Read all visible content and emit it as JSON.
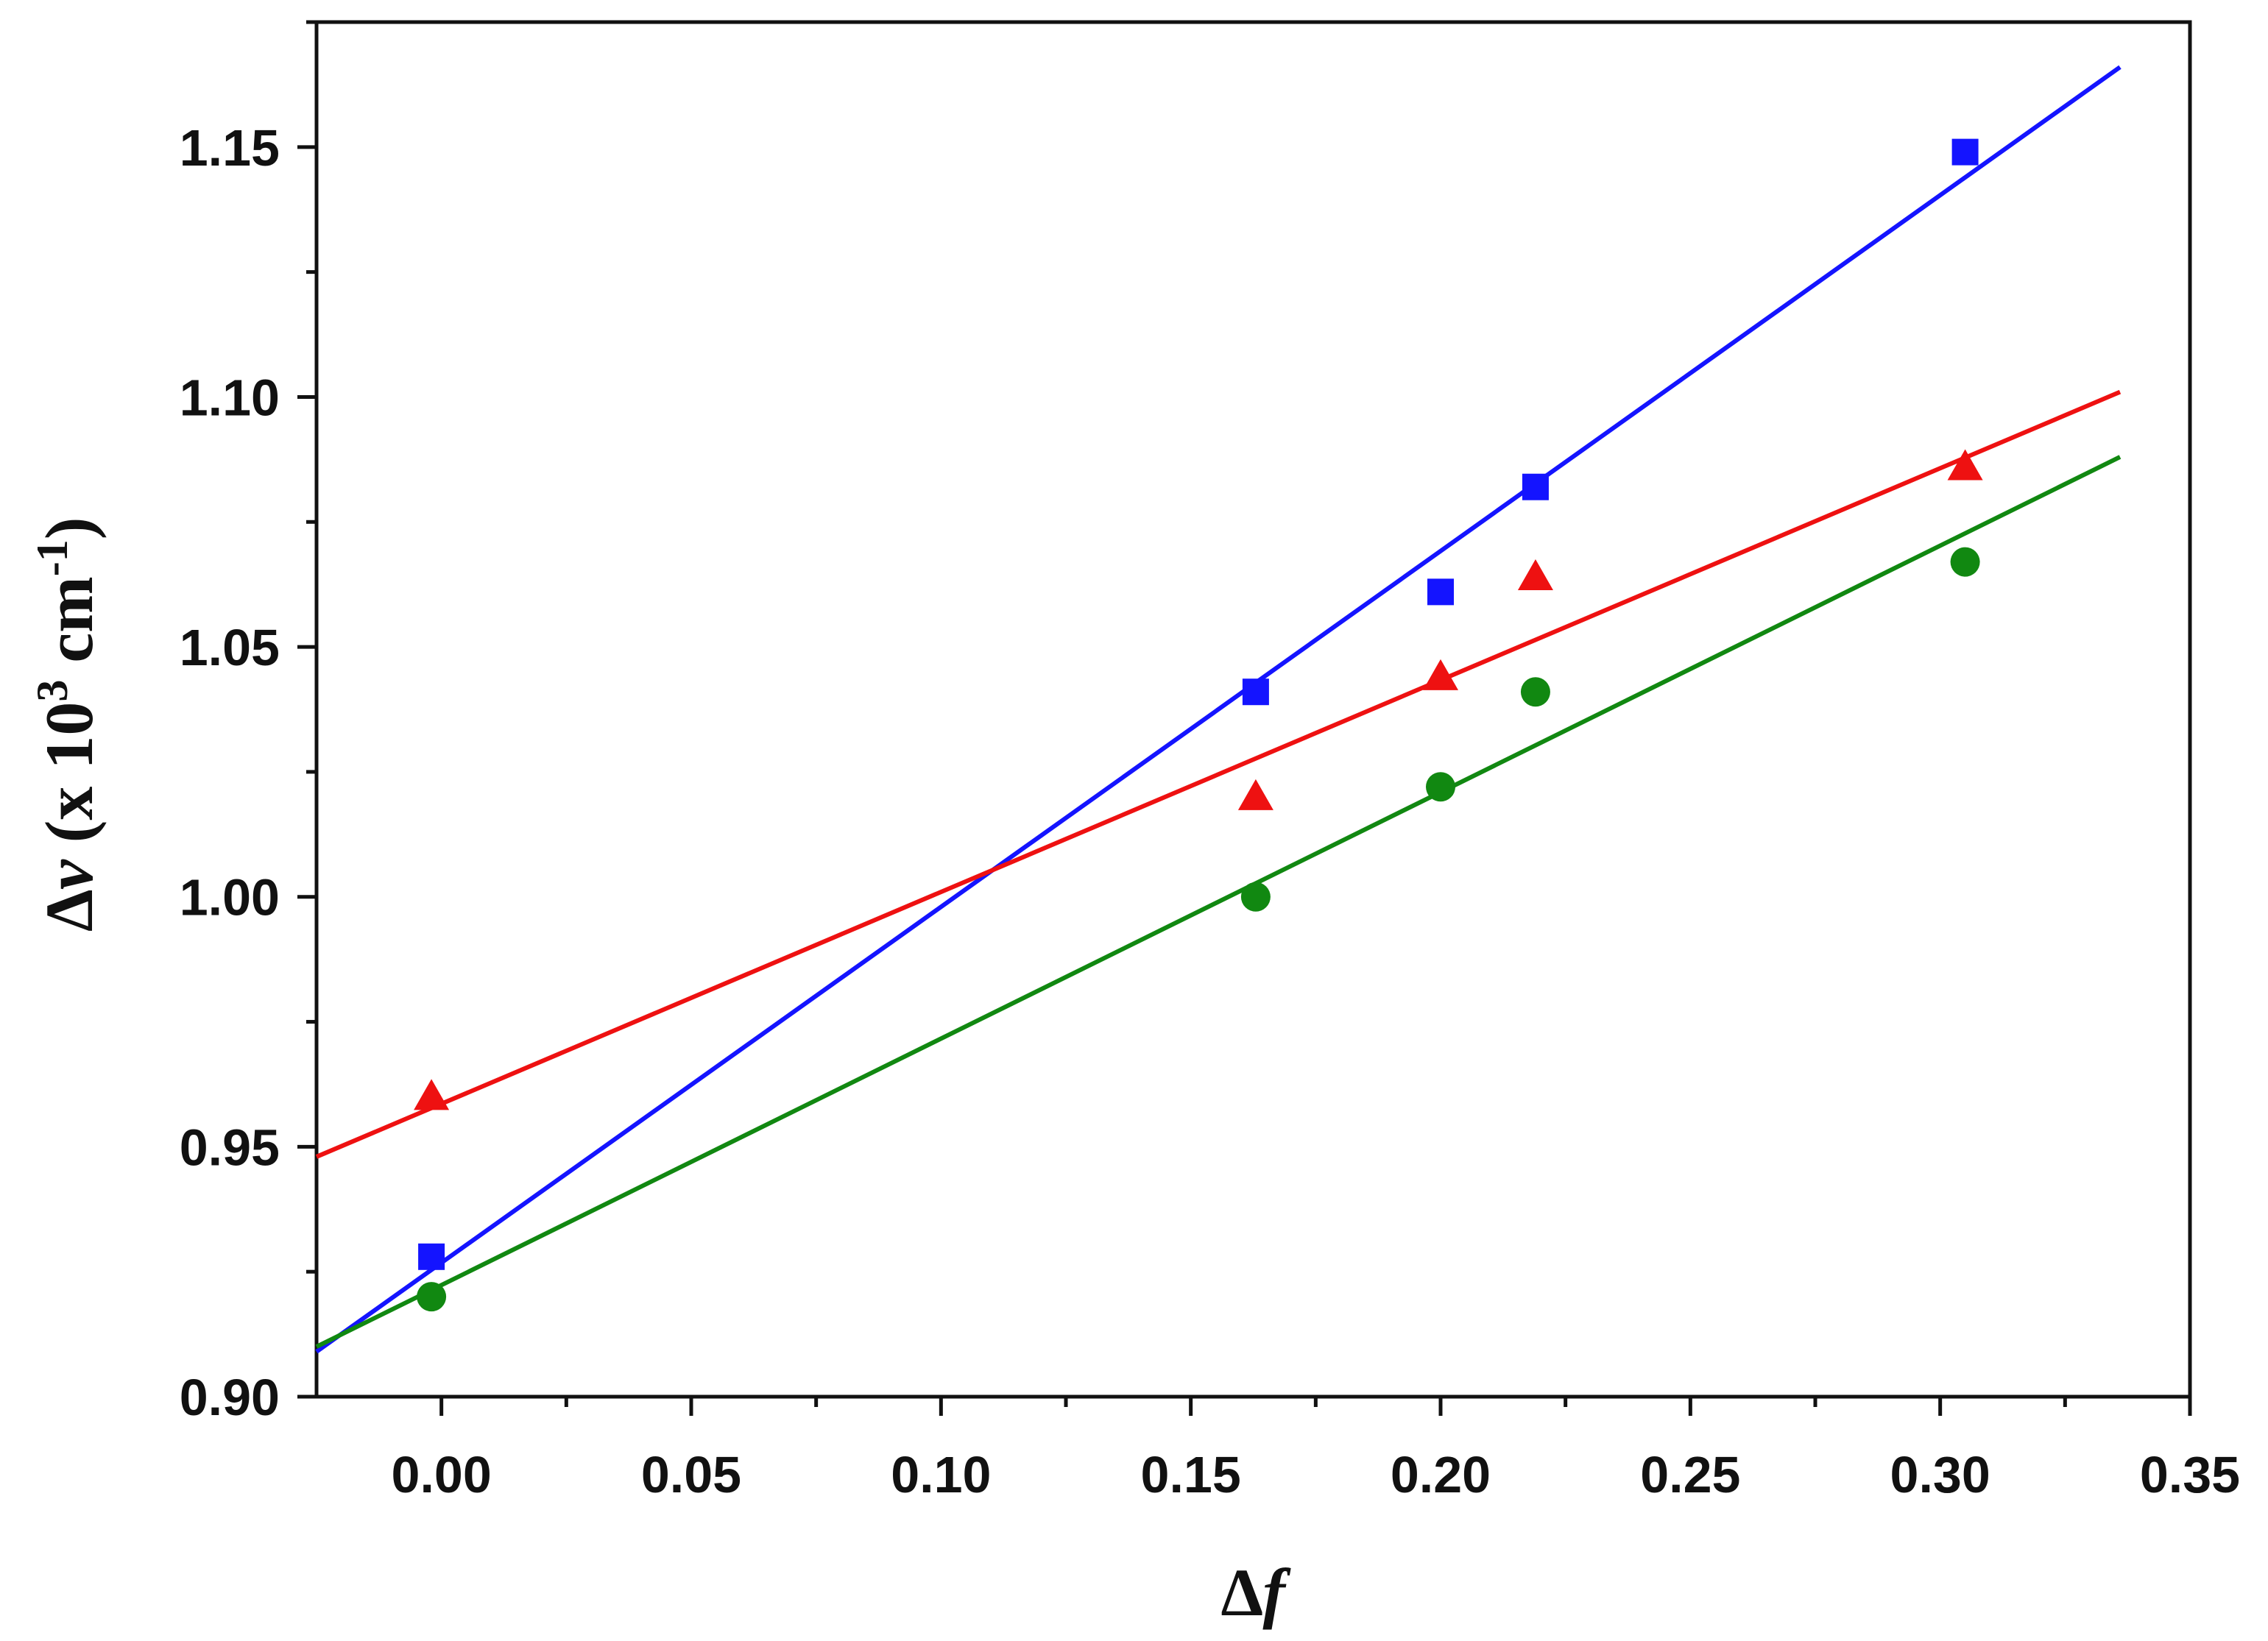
{
  "chart_data": {
    "type": "scatter",
    "xlabel": {
      "symbol": "∆",
      "var": "f"
    },
    "ylabel": {
      "symbol": "∆",
      "var": "ν",
      "rest_open": " (x 10",
      "sup1": "3",
      "unit": " cm",
      "sup2": "-1",
      "rest_close": ")"
    },
    "xlim": [
      -0.025,
      0.35
    ],
    "ylim": [
      0.9,
      1.175
    ],
    "x_ticks": [
      "0.00",
      "0.05",
      "0.10",
      "0.15",
      "0.20",
      "0.25",
      "0.30",
      "0.35"
    ],
    "x_tick_values": [
      0.0,
      0.05,
      0.1,
      0.15,
      0.2,
      0.25,
      0.3,
      0.35
    ],
    "y_ticks": [
      "0.90",
      "0.95",
      "1.00",
      "1.05",
      "1.10",
      "1.15"
    ],
    "y_tick_values": [
      0.9,
      0.95,
      1.0,
      1.05,
      1.1,
      1.15
    ],
    "grid": false,
    "series": [
      {
        "marker": "square",
        "color": "#1414ff",
        "points": [
          [
            -0.002,
            0.928
          ],
          [
            0.163,
            1.041
          ],
          [
            0.2,
            1.061
          ],
          [
            0.219,
            1.082
          ],
          [
            0.305,
            1.149
          ]
        ],
        "fit": {
          "x": [
            -0.025,
            0.336
          ],
          "y": [
            0.909,
            1.166
          ]
        }
      },
      {
        "marker": "triangle",
        "color": "#ee1111",
        "points": [
          [
            -0.002,
            0.96
          ],
          [
            0.163,
            1.02
          ],
          [
            0.2,
            1.044
          ],
          [
            0.219,
            1.064
          ],
          [
            0.305,
            1.086
          ]
        ],
        "fit": {
          "x": [
            -0.025,
            0.336
          ],
          "y": [
            0.948,
            1.101
          ]
        }
      },
      {
        "marker": "circle",
        "color": "#118811",
        "points": [
          [
            -0.002,
            0.92
          ],
          [
            0.163,
            1.0
          ],
          [
            0.2,
            1.022
          ],
          [
            0.219,
            1.041
          ],
          [
            0.305,
            1.067
          ]
        ],
        "fit": {
          "x": [
            -0.025,
            0.336
          ],
          "y": [
            0.91,
            1.088
          ]
        }
      }
    ]
  }
}
